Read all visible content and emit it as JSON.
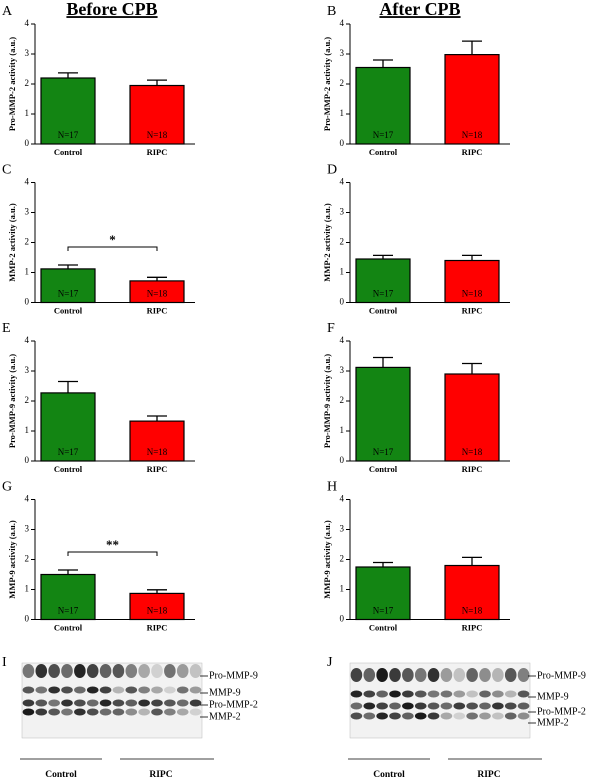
{
  "headers": [
    "Before CPB",
    "After CPB"
  ],
  "chart_data": [
    {
      "type": "bar",
      "panel": "A",
      "ylabel": "Pro-MMP-2 activity (a.u.)",
      "categories": [
        "Control",
        "RIPC"
      ],
      "values": [
        2.2,
        1.95
      ],
      "errors": [
        0.17,
        0.18
      ],
      "bar_labels": [
        "N=17",
        "N=18"
      ],
      "colors": [
        "#138513",
        "#ff0000"
      ],
      "ylim": [
        0,
        4
      ],
      "yticks": [
        0,
        1,
        2,
        3,
        4
      ]
    },
    {
      "type": "bar",
      "panel": "B",
      "ylabel": "Pro-MMP-2 activity (a.u.)",
      "categories": [
        "Control",
        "RIPC"
      ],
      "values": [
        2.55,
        2.98
      ],
      "errors": [
        0.25,
        0.45
      ],
      "bar_labels": [
        "N=17",
        "N=18"
      ],
      "colors": [
        "#138513",
        "#ff0000"
      ],
      "ylim": [
        0,
        4
      ],
      "yticks": [
        0,
        1,
        2,
        3,
        4
      ]
    },
    {
      "type": "bar",
      "panel": "C",
      "ylabel": "MMP-2 activity (a.u.)",
      "categories": [
        "Control",
        "RIPC"
      ],
      "values": [
        1.12,
        0.72
      ],
      "errors": [
        0.13,
        0.12
      ],
      "bar_labels": [
        "N=17",
        "N=18"
      ],
      "colors": [
        "#138513",
        "#ff0000"
      ],
      "ylim": [
        0,
        4
      ],
      "yticks": [
        0,
        1,
        2,
        3,
        4
      ],
      "annotation": "*"
    },
    {
      "type": "bar",
      "panel": "D",
      "ylabel": "MMP-2 activity (a.u.)",
      "categories": [
        "Control",
        "RIPC"
      ],
      "values": [
        1.45,
        1.4
      ],
      "errors": [
        0.12,
        0.17
      ],
      "bar_labels": [
        "N=17",
        "N=18"
      ],
      "colors": [
        "#138513",
        "#ff0000"
      ],
      "ylim": [
        0,
        4
      ],
      "yticks": [
        0,
        1,
        2,
        3,
        4
      ]
    },
    {
      "type": "bar",
      "panel": "E",
      "ylabel": "Pro-MMP-9 activity (a.u.)",
      "categories": [
        "Control",
        "RIPC"
      ],
      "values": [
        2.27,
        1.33
      ],
      "errors": [
        0.38,
        0.17
      ],
      "bar_labels": [
        "N=17",
        "N=18"
      ],
      "colors": [
        "#138513",
        "#ff0000"
      ],
      "ylim": [
        0,
        4
      ],
      "yticks": [
        0,
        1,
        2,
        3,
        4
      ]
    },
    {
      "type": "bar",
      "panel": "F",
      "ylabel": "Pro-MMP-9 activity (a.u.)",
      "categories": [
        "Control",
        "RIPC"
      ],
      "values": [
        3.12,
        2.9
      ],
      "errors": [
        0.33,
        0.35
      ],
      "bar_labels": [
        "N=17",
        "N=18"
      ],
      "colors": [
        "#138513",
        "#ff0000"
      ],
      "ylim": [
        0,
        4
      ],
      "yticks": [
        0,
        1,
        2,
        3,
        4
      ]
    },
    {
      "type": "bar",
      "panel": "G",
      "ylabel": "MMP-9 activity (a.u.)",
      "categories": [
        "Control",
        "RIPC"
      ],
      "values": [
        1.5,
        0.87
      ],
      "errors": [
        0.15,
        0.12
      ],
      "bar_labels": [
        "N=17",
        "N=18"
      ],
      "colors": [
        "#138513",
        "#ff0000"
      ],
      "ylim": [
        0,
        4
      ],
      "yticks": [
        0,
        1,
        2,
        3,
        4
      ],
      "annotation": "**"
    },
    {
      "type": "bar",
      "panel": "H",
      "ylabel": "MMP-9 activity (a.u.)",
      "categories": [
        "Control",
        "RIPC"
      ],
      "values": [
        1.75,
        1.8
      ],
      "errors": [
        0.15,
        0.27
      ],
      "bar_labels": [
        "N=17",
        "N=18"
      ],
      "colors": [
        "#138513",
        "#ff0000"
      ],
      "ylim": [
        0,
        4
      ],
      "yticks": [
        0,
        1,
        2,
        3,
        4
      ]
    }
  ],
  "gels": [
    {
      "panel": "I",
      "bands": [
        "Pro-MMP-9",
        "MMP-9",
        "Pro-MMP-2",
        "MMP-2"
      ],
      "groups": [
        "Control",
        "RIPC"
      ]
    },
    {
      "panel": "J",
      "bands": [
        "Pro-MMP-9",
        "MMP-9",
        "Pro-MMP-2",
        "MMP-2"
      ],
      "groups": [
        "Control",
        "RIPC"
      ]
    }
  ]
}
